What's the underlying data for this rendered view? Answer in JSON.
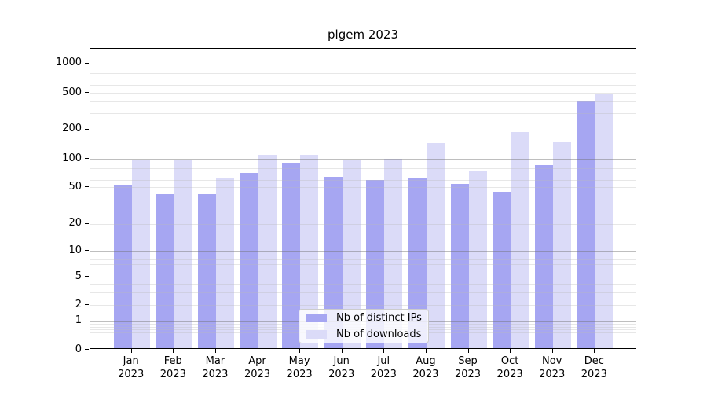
{
  "title": "plgem 2023",
  "chart_data": {
    "type": "bar",
    "title": "plgem 2023",
    "categories": [
      "Jan",
      "Feb",
      "Mar",
      "Apr",
      "May",
      "Jun",
      "Jul",
      "Aug",
      "Sep",
      "Oct",
      "Nov",
      "Dec"
    ],
    "category_year": "2023",
    "series": [
      {
        "name": "Nb of distinct IPs",
        "color": "#a6a6f2",
        "values": [
          50,
          40,
          40,
          68,
          87,
          62,
          57,
          60,
          52,
          43,
          82,
          385
        ]
      },
      {
        "name": "Nb of downloads",
        "color": "#dbdbf8",
        "values": [
          92,
          92,
          60,
          105,
          105,
          92,
          97,
          140,
          72,
          180,
          143,
          460
        ]
      }
    ],
    "xlabel": "",
    "ylabel": "",
    "yscale": "symlog",
    "yticks": [
      0,
      1,
      2,
      5,
      10,
      20,
      50,
      100,
      200,
      500,
      1000
    ],
    "ylim": [
      0,
      1500
    ],
    "grid": "both",
    "legend_position": "bottom-center"
  }
}
